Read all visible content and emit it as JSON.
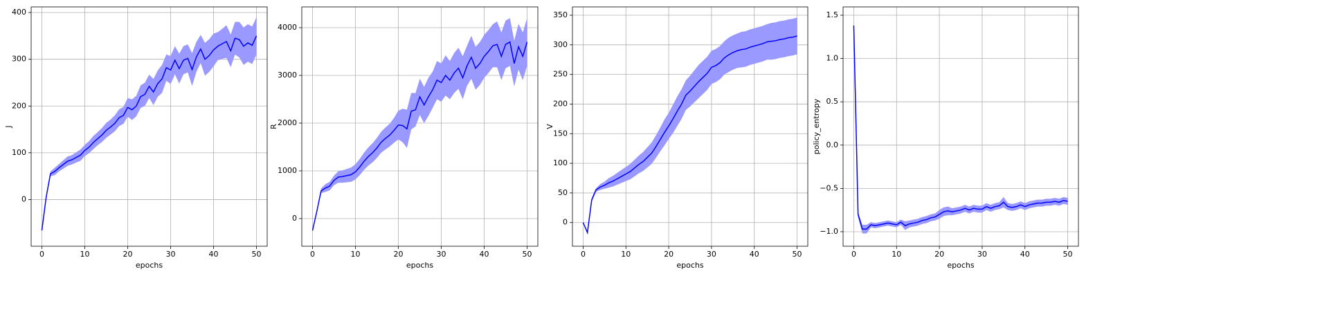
{
  "chart_data": [
    {
      "type": "line",
      "xlabel": "epochs",
      "ylabel": "J",
      "color": "#0000ff",
      "band_color": "#9999ff",
      "grid": true,
      "x": [
        0,
        1,
        2,
        3,
        4,
        5,
        6,
        7,
        8,
        9,
        10,
        11,
        12,
        13,
        14,
        15,
        16,
        17,
        18,
        19,
        20,
        21,
        22,
        23,
        24,
        25,
        26,
        27,
        28,
        29,
        30,
        31,
        32,
        33,
        34,
        35,
        36,
        37,
        38,
        39,
        40,
        41,
        42,
        43,
        44,
        45,
        46,
        47,
        48,
        49,
        50
      ],
      "values": [
        -66,
        5,
        55,
        60,
        68,
        75,
        82,
        85,
        90,
        95,
        105,
        112,
        122,
        130,
        138,
        148,
        155,
        163,
        175,
        180,
        197,
        192,
        200,
        220,
        225,
        242,
        230,
        248,
        258,
        282,
        277,
        298,
        280,
        298,
        302,
        278,
        305,
        322,
        300,
        308,
        320,
        328,
        333,
        338,
        318,
        345,
        342,
        328,
        335,
        330,
        350
      ],
      "errors": [
        0,
        0,
        5,
        8,
        8,
        9,
        10,
        10,
        11,
        12,
        12,
        13,
        14,
        14,
        15,
        16,
        16,
        17,
        18,
        18,
        20,
        22,
        22,
        24,
        25,
        25,
        28,
        28,
        30,
        28,
        30,
        30,
        32,
        30,
        30,
        35,
        32,
        30,
        35,
        35,
        35,
        30,
        32,
        35,
        35,
        35,
        38,
        40,
        40,
        40,
        40
      ],
      "xlim": [
        -2.5,
        52.5
      ],
      "xticks": [
        0,
        10,
        20,
        30,
        40,
        50
      ],
      "ylim": [
        -100,
        412
      ],
      "yticks": [
        0,
        100,
        200,
        300,
        400
      ]
    },
    {
      "type": "line",
      "xlabel": "epochs",
      "ylabel": "R",
      "color": "#0000ff",
      "band_color": "#9999ff",
      "grid": true,
      "x": [
        0,
        1,
        2,
        3,
        4,
        5,
        6,
        7,
        8,
        9,
        10,
        11,
        12,
        13,
        14,
        15,
        16,
        17,
        18,
        19,
        20,
        21,
        22,
        23,
        24,
        25,
        26,
        27,
        28,
        29,
        30,
        31,
        32,
        33,
        34,
        35,
        36,
        37,
        38,
        39,
        40,
        41,
        42,
        43,
        44,
        45,
        46,
        47,
        48,
        49,
        50
      ],
      "values": [
        -250,
        150,
        580,
        640,
        680,
        800,
        870,
        880,
        900,
        920,
        980,
        1080,
        1200,
        1300,
        1380,
        1480,
        1600,
        1680,
        1750,
        1850,
        1960,
        1950,
        1880,
        2250,
        2280,
        2550,
        2380,
        2550,
        2700,
        2900,
        2850,
        3000,
        2900,
        3050,
        3150,
        2950,
        3200,
        3380,
        3150,
        3250,
        3400,
        3500,
        3620,
        3650,
        3400,
        3650,
        3700,
        3250,
        3600,
        3400,
        3700
      ],
      "errors": [
        0,
        0,
        50,
        80,
        90,
        100,
        120,
        130,
        140,
        150,
        160,
        170,
        180,
        190,
        200,
        210,
        220,
        230,
        240,
        260,
        300,
        350,
        400,
        380,
        350,
        380,
        380,
        400,
        380,
        400,
        400,
        420,
        400,
        420,
        430,
        450,
        420,
        450,
        450,
        450,
        450,
        450,
        450,
        480,
        500,
        500,
        500,
        480,
        480,
        500,
        500
      ],
      "xlim": [
        -2.5,
        52.5
      ],
      "xticks": [
        0,
        10,
        20,
        30,
        40,
        50
      ],
      "ylim": [
        -580,
        4435
      ],
      "yticks": [
        0,
        1000,
        2000,
        3000,
        4000
      ]
    },
    {
      "type": "line",
      "xlabel": "epochs",
      "ylabel": "V",
      "color": "#0000ff",
      "band_color": "#9999ff",
      "grid": true,
      "x": [
        0,
        1,
        2,
        3,
        4,
        5,
        6,
        7,
        8,
        9,
        10,
        11,
        12,
        13,
        14,
        15,
        16,
        17,
        18,
        19,
        20,
        21,
        22,
        23,
        24,
        25,
        26,
        27,
        28,
        29,
        30,
        31,
        32,
        33,
        34,
        35,
        36,
        37,
        38,
        39,
        40,
        41,
        42,
        43,
        44,
        45,
        46,
        47,
        48,
        49,
        50
      ],
      "values": [
        0,
        -17,
        38,
        55,
        60,
        63,
        67,
        70,
        74,
        78,
        82,
        86,
        92,
        98,
        103,
        110,
        117,
        128,
        140,
        152,
        163,
        175,
        188,
        200,
        215,
        222,
        230,
        238,
        245,
        252,
        262,
        265,
        270,
        278,
        283,
        287,
        290,
        292,
        293,
        296,
        298,
        300,
        302,
        305,
        306,
        307,
        309,
        310,
        312,
        313,
        315
      ],
      "errors": [
        0,
        0,
        3,
        3,
        5,
        6,
        8,
        9,
        10,
        11,
        12,
        13,
        14,
        15,
        16,
        17,
        18,
        19,
        20,
        22,
        22,
        24,
        25,
        25,
        25,
        26,
        27,
        28,
        28,
        28,
        28,
        28,
        28,
        28,
        29,
        29,
        29,
        30,
        30,
        30,
        30,
        30,
        30,
        30,
        31,
        31,
        31,
        31,
        31,
        31,
        31
      ],
      "xlim": [
        -2.5,
        52.5
      ],
      "xticks": [
        0,
        10,
        20,
        30,
        40,
        50
      ],
      "ylim": [
        -40,
        364
      ],
      "yticks": [
        0,
        50,
        100,
        150,
        200,
        250,
        300,
        350
      ]
    },
    {
      "type": "line",
      "xlabel": "epochs",
      "ylabel": "policy_entropy",
      "color": "#0000ff",
      "band_color": "#9999ff",
      "grid": true,
      "x": [
        0,
        1,
        2,
        3,
        4,
        5,
        6,
        7,
        8,
        9,
        10,
        11,
        12,
        13,
        14,
        15,
        16,
        17,
        18,
        19,
        20,
        21,
        22,
        23,
        24,
        25,
        26,
        27,
        28,
        29,
        30,
        31,
        32,
        33,
        34,
        35,
        36,
        37,
        38,
        39,
        40,
        41,
        42,
        43,
        44,
        45,
        46,
        47,
        48,
        49,
        50
      ],
      "values": [
        1.38,
        -0.8,
        -0.97,
        -0.97,
        -0.92,
        -0.93,
        -0.92,
        -0.91,
        -0.9,
        -0.91,
        -0.92,
        -0.89,
        -0.93,
        -0.91,
        -0.9,
        -0.89,
        -0.87,
        -0.86,
        -0.84,
        -0.83,
        -0.8,
        -0.77,
        -0.76,
        -0.77,
        -0.76,
        -0.75,
        -0.73,
        -0.75,
        -0.73,
        -0.74,
        -0.74,
        -0.71,
        -0.73,
        -0.71,
        -0.7,
        -0.66,
        -0.71,
        -0.72,
        -0.71,
        -0.69,
        -0.71,
        -0.69,
        -0.68,
        -0.67,
        -0.67,
        -0.66,
        -0.66,
        -0.65,
        -0.66,
        -0.64,
        -0.65
      ],
      "errors": [
        0,
        0.03,
        0.05,
        0.05,
        0.03,
        0.03,
        0.03,
        0.03,
        0.03,
        0.03,
        0.03,
        0.03,
        0.05,
        0.04,
        0.04,
        0.04,
        0.04,
        0.04,
        0.04,
        0.04,
        0.05,
        0.05,
        0.05,
        0.04,
        0.04,
        0.04,
        0.04,
        0.04,
        0.04,
        0.04,
        0.04,
        0.04,
        0.04,
        0.04,
        0.04,
        0.06,
        0.04,
        0.04,
        0.04,
        0.04,
        0.04,
        0.04,
        0.04,
        0.04,
        0.04,
        0.04,
        0.04,
        0.04,
        0.04,
        0.04,
        0.04
      ],
      "xlim": [
        -2.5,
        52.5
      ],
      "xticks": [
        0,
        10,
        20,
        30,
        40,
        50
      ],
      "ylim": [
        -1.168,
        1.596
      ],
      "yticks": [
        {
          "value": -1.0,
          "label": "−1.0"
        },
        {
          "value": -0.5,
          "label": "−0.5"
        },
        {
          "value": 0.0,
          "label": "0.0"
        },
        {
          "value": 0.5,
          "label": "0.5"
        },
        {
          "value": 1.0,
          "label": "1.0"
        },
        {
          "value": 1.5,
          "label": "1.5"
        }
      ]
    }
  ]
}
